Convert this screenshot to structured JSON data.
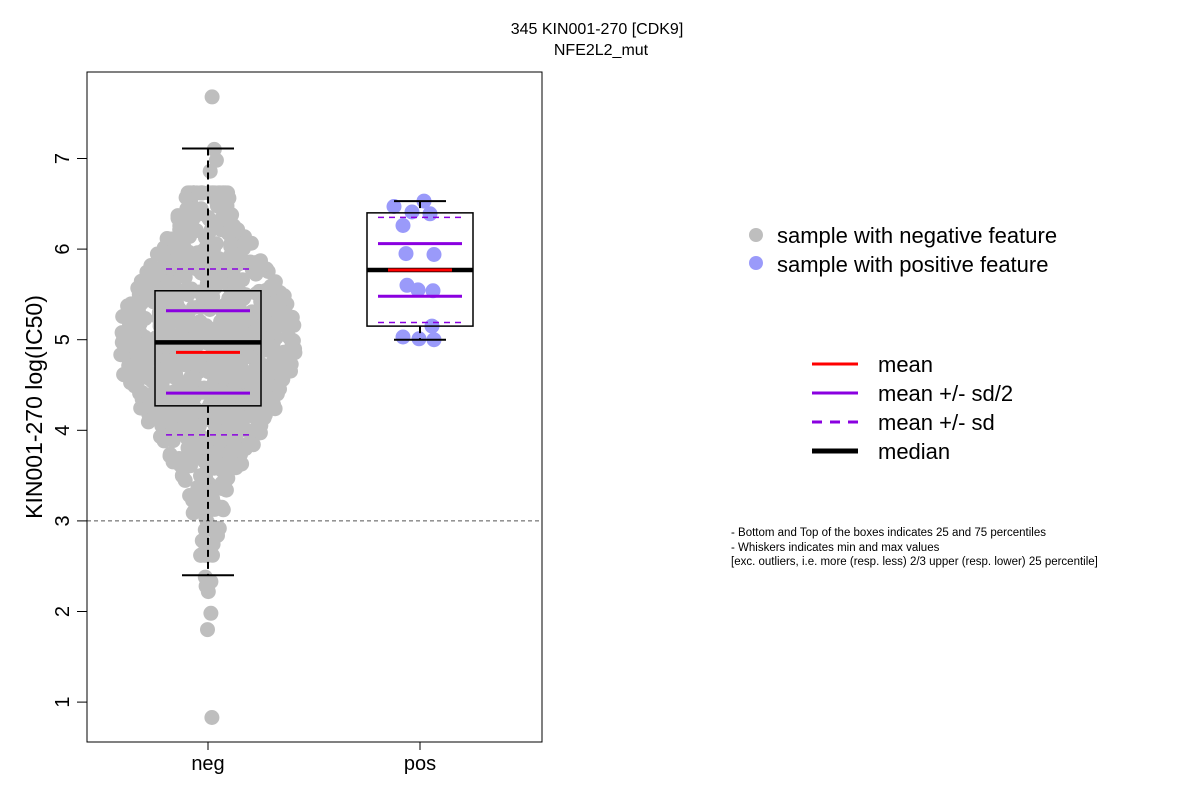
{
  "chart_data": {
    "type": "boxplot",
    "title": "345 KIN001-270 [CDK9]",
    "subtitle": "NFE2L2_mut",
    "ylabel": "KIN001-270 log(IC50)",
    "xlabel": "",
    "categories": [
      "neg",
      "pos"
    ],
    "ylim": [
      0.6,
      7.9
    ],
    "yticks": [
      1,
      2,
      3,
      4,
      5,
      6,
      7
    ],
    "yticklabels": [
      "1",
      "2",
      "3",
      "4",
      "5",
      "6",
      "7"
    ],
    "reference_line": 3,
    "grid": false,
    "boxes": [
      {
        "name": "neg",
        "whisker_low": 2.4,
        "q1": 4.27,
        "median": 4.97,
        "q3": 5.54,
        "whisker_high": 7.11,
        "mean": 4.86,
        "mean_minus_half_sd": 4.41,
        "mean_plus_half_sd": 5.32,
        "mean_minus_sd": 3.95,
        "mean_plus_sd": 5.78
      },
      {
        "name": "pos",
        "whisker_low": 5.0,
        "q1": 5.15,
        "median": 5.77,
        "q3": 6.4,
        "whisker_high": 6.53,
        "mean": 5.77,
        "mean_minus_half_sd": 5.48,
        "mean_plus_half_sd": 6.06,
        "mean_minus_sd": 5.19,
        "mean_plus_sd": 6.35
      }
    ],
    "series": [
      {
        "name": "sample with negative feature",
        "category": "neg",
        "approx_count": 900,
        "notable_values": [
          7.68,
          7.1,
          6.98,
          6.86,
          2.33,
          2.22,
          2.38,
          2.28,
          1.98,
          1.8,
          0.83
        ]
      },
      {
        "name": "sample with positive feature",
        "category": "pos",
        "values": [
          6.53,
          6.47,
          6.41,
          6.39,
          6.26,
          5.95,
          5.94,
          5.6,
          5.55,
          5.54,
          5.15,
          5.03,
          5.01,
          5.0
        ]
      }
    ],
    "legend_points": [
      {
        "label": "sample with negative feature",
        "color": "#bebebe"
      },
      {
        "label": "sample with positive feature",
        "color": "#9a9afa"
      }
    ],
    "legend_lines": [
      {
        "label": "mean",
        "color": "#ff0000",
        "style": "solid"
      },
      {
        "label": "mean +/- sd/2",
        "color": "#8a00e0",
        "style": "solid"
      },
      {
        "label": "mean +/- sd",
        "color": "#8a00e0",
        "style": "dashed"
      },
      {
        "label": "median",
        "color": "#000000",
        "style": "thick"
      }
    ],
    "legend_placement": "right",
    "notes": [
      "- Bottom and Top of the boxes indicates 25 and 75 percentiles",
      "- Whiskers indicates min and max values",
      "[exc. outliers, i.e. more (resp. less) 2/3 upper (resp. lower) 25 percentile]"
    ],
    "colors": {
      "neg_points": "#bebebe",
      "pos_points": "#9a9afa",
      "mean": "#ff0000",
      "sd": "#8a00e0",
      "median": "#000000"
    }
  }
}
